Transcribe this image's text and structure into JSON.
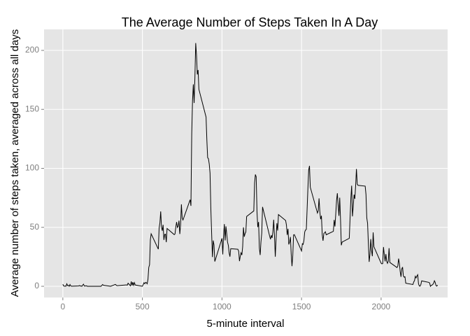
{
  "chart_data": {
    "type": "line",
    "title": "The Average Number of Steps Taken In A Day",
    "x_label": "5-minute interval",
    "y_label": "Average number of steps taken, averaged across all days",
    "color": "#000000",
    "grid": true,
    "xlim": [
      -118,
      2418
    ],
    "ylim": [
      -9.5,
      217.8
    ],
    "xticks": [
      0,
      500,
      1000,
      1500,
      2000
    ],
    "yticks": [
      0,
      50,
      100,
      150,
      200
    ],
    "x": [
      0,
      5,
      10,
      15,
      20,
      25,
      30,
      35,
      40,
      45,
      50,
      55,
      100,
      105,
      110,
      115,
      120,
      125,
      130,
      135,
      140,
      145,
      150,
      155,
      200,
      215,
      240,
      250,
      255,
      300,
      330,
      340,
      400,
      405,
      410,
      425,
      430,
      435,
      440,
      445,
      450,
      455,
      500,
      510,
      515,
      520,
      525,
      530,
      535,
      540,
      545,
      550,
      555,
      600,
      605,
      610,
      615,
      620,
      625,
      630,
      635,
      640,
      645,
      650,
      655,
      700,
      705,
      710,
      715,
      720,
      725,
      730,
      735,
      740,
      745,
      750,
      755,
      800,
      805,
      810,
      815,
      820,
      825,
      830,
      835,
      840,
      845,
      850,
      855,
      900,
      905,
      910,
      915,
      920,
      925,
      930,
      935,
      940,
      945,
      950,
      955,
      1000,
      1005,
      1010,
      1015,
      1020,
      1025,
      1030,
      1035,
      1040,
      1045,
      1050,
      1055,
      1100,
      1105,
      1110,
      1115,
      1120,
      1125,
      1130,
      1135,
      1140,
      1145,
      1150,
      1155,
      1200,
      1205,
      1210,
      1215,
      1220,
      1225,
      1230,
      1235,
      1240,
      1245,
      1250,
      1255,
      1300,
      1305,
      1310,
      1315,
      1320,
      1325,
      1330,
      1335,
      1340,
      1345,
      1350,
      1355,
      1400,
      1405,
      1410,
      1415,
      1420,
      1425,
      1430,
      1435,
      1440,
      1445,
      1450,
      1455,
      1500,
      1505,
      1510,
      1515,
      1520,
      1525,
      1530,
      1535,
      1540,
      1545,
      1550,
      1555,
      1600,
      1605,
      1610,
      1615,
      1620,
      1625,
      1630,
      1635,
      1640,
      1645,
      1650,
      1655,
      1700,
      1705,
      1710,
      1715,
      1720,
      1725,
      1730,
      1735,
      1740,
      1745,
      1750,
      1755,
      1800,
      1805,
      1810,
      1815,
      1820,
      1825,
      1830,
      1835,
      1840,
      1845,
      1850,
      1855,
      1900,
      1905,
      1910,
      1915,
      1920,
      1925,
      1930,
      1935,
      1940,
      1945,
      1950,
      1955,
      2000,
      2005,
      2010,
      2015,
      2020,
      2025,
      2030,
      2035,
      2040,
      2045,
      2050,
      2055,
      2100,
      2105,
      2110,
      2115,
      2120,
      2125,
      2130,
      2135,
      2140,
      2145,
      2150,
      2155,
      2200,
      2205,
      2210,
      2215,
      2220,
      2225,
      2230,
      2235,
      2240,
      2245,
      2250,
      2255,
      2300,
      2305,
      2310,
      2315,
      2320,
      2325,
      2330,
      2335,
      2340,
      2345,
      2350,
      2355
    ],
    "values": [
      1.7,
      0.3,
      0.1,
      0.2,
      0.1,
      2.1,
      0.5,
      0.9,
      0,
      1.5,
      0.3,
      0.1,
      0.3,
      0.7,
      0.2,
      0.3,
      0,
      1.1,
      1.8,
      0.2,
      0.2,
      0.4,
      0.3,
      0,
      0,
      0,
      0,
      1.5,
      0.9,
      0,
      1.6,
      0.5,
      1.2,
      0.9,
      2.6,
      0.4,
      4.1,
      0.7,
      3.5,
      0.8,
      3.1,
      1.1,
      0,
      3,
      2.2,
      3.3,
      3,
      2.1,
      6,
      16,
      18.3,
      39.5,
      44.5,
      31.5,
      49.3,
      53.8,
      63.5,
      50,
      47.1,
      52.1,
      39.3,
      44,
      44.2,
      37.4,
      49,
      43.8,
      44.4,
      50.5,
      54.5,
      49.9,
      51,
      55.7,
      44.3,
      52.3,
      69.5,
      57.8,
      56.2,
      73.4,
      68.2,
      129.4,
      157.5,
      171.2,
      155.4,
      177.3,
      206.2,
      195.9,
      179.6,
      183.4,
      167,
      143.5,
      124,
      109.1,
      108.1,
      103.7,
      96,
      66.2,
      45.2,
      24.8,
      38.8,
      35,
      21,
      40.6,
      27,
      42.4,
      52.7,
      38.9,
      50.8,
      44.3,
      37.4,
      34.7,
      28.3,
      25.1,
      31.9,
      31.4,
      29.7,
      21.3,
      25.5,
      28.4,
      26.5,
      33.4,
      50,
      42,
      44.6,
      46,
      59.2,
      63.9,
      87.7,
      94.8,
      92.8,
      63.4,
      50.2,
      54.5,
      32.4,
      26.5,
      37.7,
      45.1,
      67.3,
      42.3,
      39.9,
      43.3,
      41,
      46.2,
      56.4,
      42.8,
      25.1,
      40,
      53.5,
      47.3,
      60.8,
      55.8,
      52,
      43.6,
      48.7,
      35.5,
      37.5,
      41.8,
      27.5,
      17.1,
      26.1,
      43.6,
      43.8,
      30,
      36.1,
      35.5,
      38.8,
      46,
      47.8,
      48.1,
      65.3,
      82.9,
      98.7,
      102.1,
      84,
      62.1,
      64.1,
      74.5,
      63.2,
      56.9,
      59.8,
      43.9,
      38.6,
      44.7,
      45.5,
      46.2,
      43.7,
      46.6,
      56.3,
      50.7,
      61.2,
      72.7,
      78.9,
      68.9,
      59.7,
      75.1,
      56.5,
      34.8,
      37.5,
      40.7,
      58,
      74.7,
      85.3,
      59.3,
      67.8,
      77.7,
      74.2,
      85.3,
      99.5,
      86.6,
      85.6,
      84.9,
      77.8,
      58,
      53.4,
      36.3,
      20.7,
      27.4,
      40,
      30.2,
      25.5,
      45.7,
      33.5,
      19.6,
      19,
      19.3,
      33.3,
      26.8,
      21.2,
      27.3,
      21.3,
      19.5,
      21.3,
      32.3,
      20.2,
      15.9,
      17.2,
      23.5,
      19.2,
      12.5,
      8,
      14.7,
      16.3,
      8.7,
      7.8,
      8.1,
      2.6,
      1.5,
      3.7,
      4.8,
      8.5,
      7.1,
      8.7,
      9.8,
      2.2,
      0.3,
      0.1,
      1.6,
      4.6,
      3.3,
      2.8,
      0,
      0.8,
      1,
      1.6,
      2.6,
      4.7,
      3.3,
      0.6,
      0.2,
      1.1
    ]
  }
}
